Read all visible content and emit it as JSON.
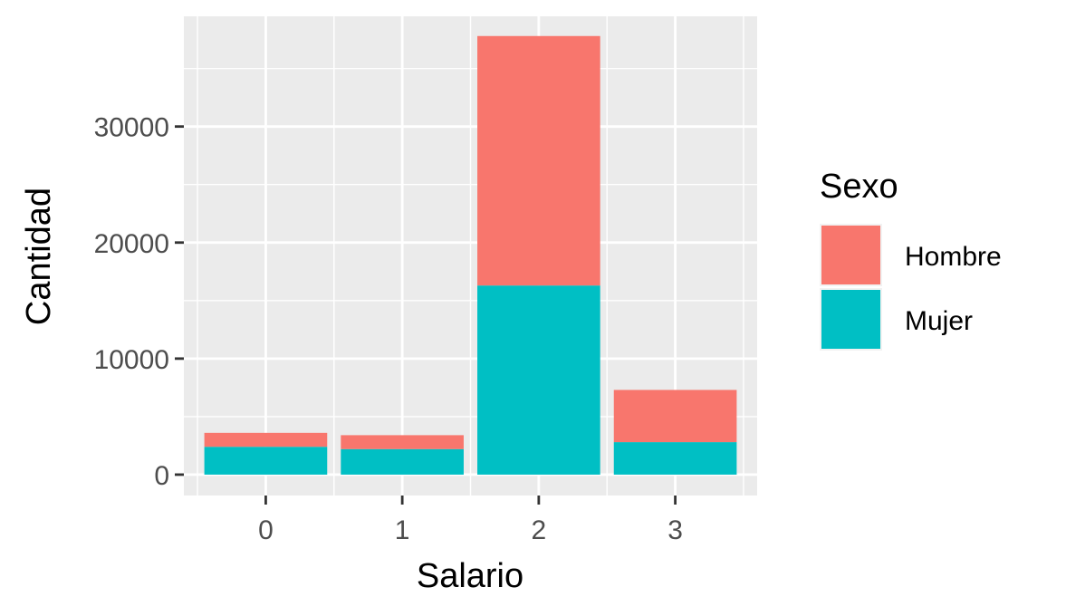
{
  "chart_data": {
    "type": "bar",
    "stacked": true,
    "title": "",
    "xlabel": "Salario",
    "ylabel": "Cantidad",
    "categories": [
      "0",
      "1",
      "2",
      "3"
    ],
    "series": [
      {
        "name": "Hombre",
        "color": "#F8766D",
        "values": [
          1200,
          1200,
          21500,
          4500
        ]
      },
      {
        "name": "Mujer",
        "color": "#00BFC4",
        "values": [
          2400,
          2200,
          16300,
          2800
        ]
      }
    ],
    "stack_order_bottom_to_top": [
      "Mujer",
      "Hombre"
    ],
    "ylim": [
      -1800,
      39500
    ],
    "yticks": [
      0,
      10000,
      20000,
      30000
    ],
    "ytick_labels": [
      "0",
      "10000",
      "20000",
      "30000"
    ],
    "grid": true,
    "legend": {
      "title": "Sexo",
      "position": "right"
    },
    "panel_color": "#EBEBEB"
  }
}
